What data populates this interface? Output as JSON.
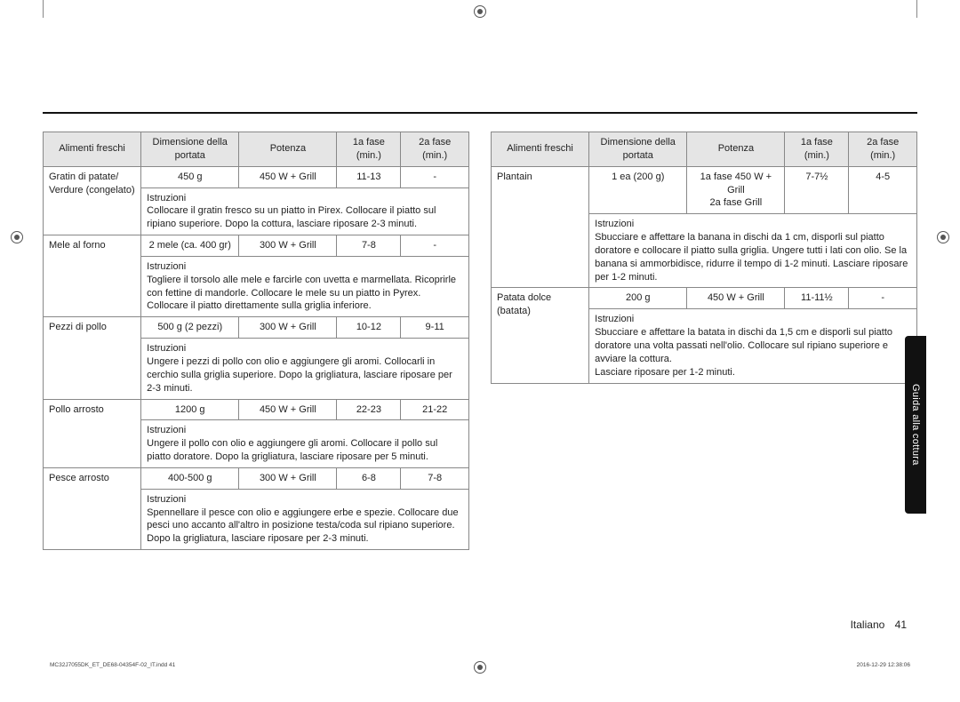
{
  "side_tab": "Guida alla cottura",
  "footer": {
    "language": "Italiano",
    "page_num": "41"
  },
  "print": {
    "left": "MC32J7055DK_ET_DE68-04354F-02_IT.indd   41",
    "right": "2016-12-29   12:38:06"
  },
  "headers": {
    "food": "Alimenti freschi",
    "size": "Dimensione della portata",
    "power": "Potenza",
    "phase1": "1a fase (min.)",
    "phase2": "2a fase (min.)"
  },
  "instr_label": "Istruzioni",
  "left_rows": [
    {
      "food": "Gratin di patate/ Verdure (congelato)",
      "size": "450 g",
      "power": "450 W + Grill",
      "p1": "11-13",
      "p2": "-",
      "instr": "Collocare il gratin fresco su un piatto in Pirex. Collocare il piatto sul ripiano superiore. Dopo la cottura, lasciare riposare 2-3 minuti."
    },
    {
      "food": "Mele al forno",
      "size": "2 mele (ca. 400 gr)",
      "power": "300 W + Grill",
      "p1": "7-8",
      "p2": "-",
      "instr": "Togliere il torsolo alle mele e farcirle con uvetta e marmellata. Ricoprirle con fettine di mandorle. Collocare le mele su un piatto in Pyrex. Collocare il piatto direttamente sulla griglia inferiore."
    },
    {
      "food": "Pezzi di pollo",
      "size": "500 g (2 pezzi)",
      "power": "300 W + Grill",
      "p1": "10-12",
      "p2": "9-11",
      "instr": "Ungere i pezzi di pollo con olio e aggiungere gli aromi. Collocarli in cerchio sulla griglia superiore. Dopo la grigliatura, lasciare riposare per 2-3 minuti."
    },
    {
      "food": "Pollo arrosto",
      "size": "1200 g",
      "power": "450 W + Grill",
      "p1": "22-23",
      "p2": "21-22",
      "instr": "Ungere il pollo con olio e aggiungere gli aromi. Collocare il pollo sul piatto doratore. Dopo la grigliatura, lasciare riposare per 5 minuti."
    },
    {
      "food": "Pesce arrosto",
      "size": "400-500 g",
      "power": "300 W + Grill",
      "p1": "6-8",
      "p2": "7-8",
      "instr": "Spennellare il pesce con olio e aggiungere erbe e spezie. Collocare due pesci uno accanto all'altro in posizione testa/coda sul ripiano superiore.\nDopo la grigliatura, lasciare riposare per 2-3 minuti."
    }
  ],
  "right_rows": [
    {
      "food": "Plantain",
      "size": "1 ea (200 g)",
      "power": "1a fase 450 W + Grill\n2a fase Grill",
      "p1": "7-7½",
      "p2": "4-5",
      "instr": "Sbucciare e affettare la banana in dischi da 1 cm, disporli sul piatto doratore e collocare il piatto sulla griglia. Ungere tutti i lati con olio. Se la banana si ammorbidisce, ridurre il tempo di 1-2 minuti. Lasciare riposare per 1-2 minuti."
    },
    {
      "food": "Patata dolce (batata)",
      "size": "200 g",
      "power": "450 W + Grill",
      "p1": "11-11½",
      "p2": "-",
      "instr": "Sbucciare e affettare la batata in dischi da 1,5 cm e disporli sul piatto doratore una volta passati nell'olio. Collocare sul ripiano superiore e avviare la cottura.\nLasciare riposare per 1-2 minuti."
    }
  ],
  "layout": {
    "col_widths": [
      "23%",
      "23%",
      "23%",
      "15%",
      "16%"
    ]
  }
}
